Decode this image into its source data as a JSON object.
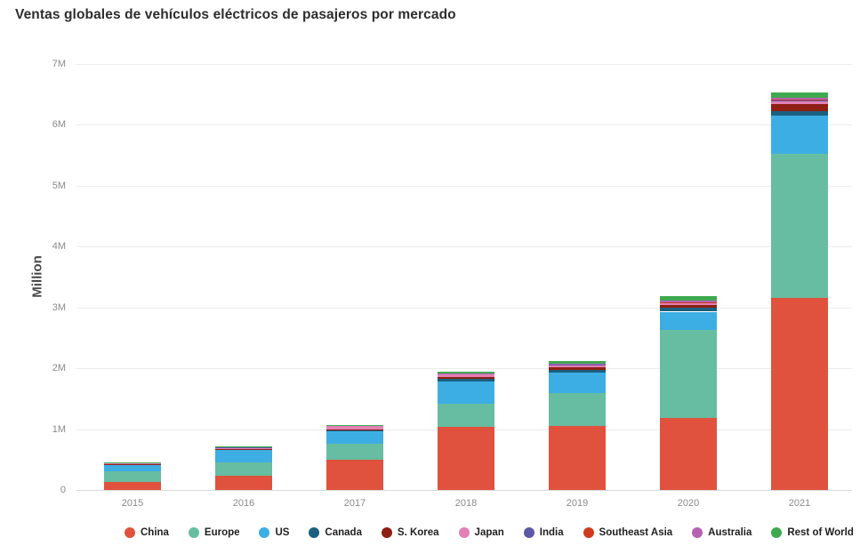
{
  "title": "Ventas globales de vehículos eléctricos de pasajeros por mercado",
  "y_axis_title": "Million",
  "chart_data": {
    "type": "bar",
    "stacked": true,
    "title": "Ventas globales de vehículos eléctricos de pasajeros por mercado",
    "xlabel": "",
    "ylabel": "Million",
    "ylim": [
      0,
      7
    ],
    "grid": "horizontal",
    "legend_position": "bottom",
    "yticks": [
      "0",
      "1M",
      "2M",
      "3M",
      "4M",
      "5M",
      "6M",
      "7M"
    ],
    "categories": [
      "2015",
      "2016",
      "2017",
      "2018",
      "2019",
      "2020",
      "2021"
    ],
    "series": [
      {
        "name": "China",
        "color": "#e0523d",
        "values": [
          0.13,
          0.24,
          0.49,
          1.04,
          1.05,
          1.18,
          3.15
        ]
      },
      {
        "name": "Europe",
        "color": "#67bda1",
        "values": [
          0.17,
          0.21,
          0.27,
          0.38,
          0.55,
          1.45,
          2.37
        ]
      },
      {
        "name": "US",
        "color": "#3daee3",
        "values": [
          0.12,
          0.21,
          0.2,
          0.36,
          0.33,
          0.3,
          0.63
        ]
      },
      {
        "name": "Canada",
        "color": "#1a607f",
        "values": [
          0.005,
          0.01,
          0.02,
          0.04,
          0.05,
          0.06,
          0.08
        ]
      },
      {
        "name": "S. Korea",
        "color": "#8e1f12",
        "values": [
          0.003,
          0.005,
          0.02,
          0.03,
          0.03,
          0.05,
          0.11
        ]
      },
      {
        "name": "Japan",
        "color": "#e181b5",
        "values": [
          0.025,
          0.025,
          0.055,
          0.05,
          0.04,
          0.03,
          0.04
        ]
      },
      {
        "name": "India",
        "color": "#5d57a7",
        "values": [
          0.002,
          0.002,
          0.005,
          0.01,
          0.01,
          0.01,
          0.02
        ]
      },
      {
        "name": "Southeast Asia",
        "color": "#d03a1e",
        "values": [
          0.001,
          0.001,
          0.002,
          0.005,
          0.01,
          0.01,
          0.02
        ]
      },
      {
        "name": "Australia",
        "color": "#b761b2",
        "values": [
          0.001,
          0.001,
          0.002,
          0.005,
          0.01,
          0.02,
          0.03
        ]
      },
      {
        "name": "Rest of World",
        "color": "#3ea94f",
        "values": [
          0.003,
          0.005,
          0.01,
          0.02,
          0.035,
          0.07,
          0.08
        ]
      }
    ],
    "totals": [
      0.46,
      0.71,
      1.07,
      1.94,
      2.12,
      3.18,
      6.53
    ]
  },
  "layout_colors": {
    "background": "#ffffff",
    "gridline": "#ececec",
    "axis_text": "#8a8a8a",
    "title_text": "#2d2d2d"
  }
}
